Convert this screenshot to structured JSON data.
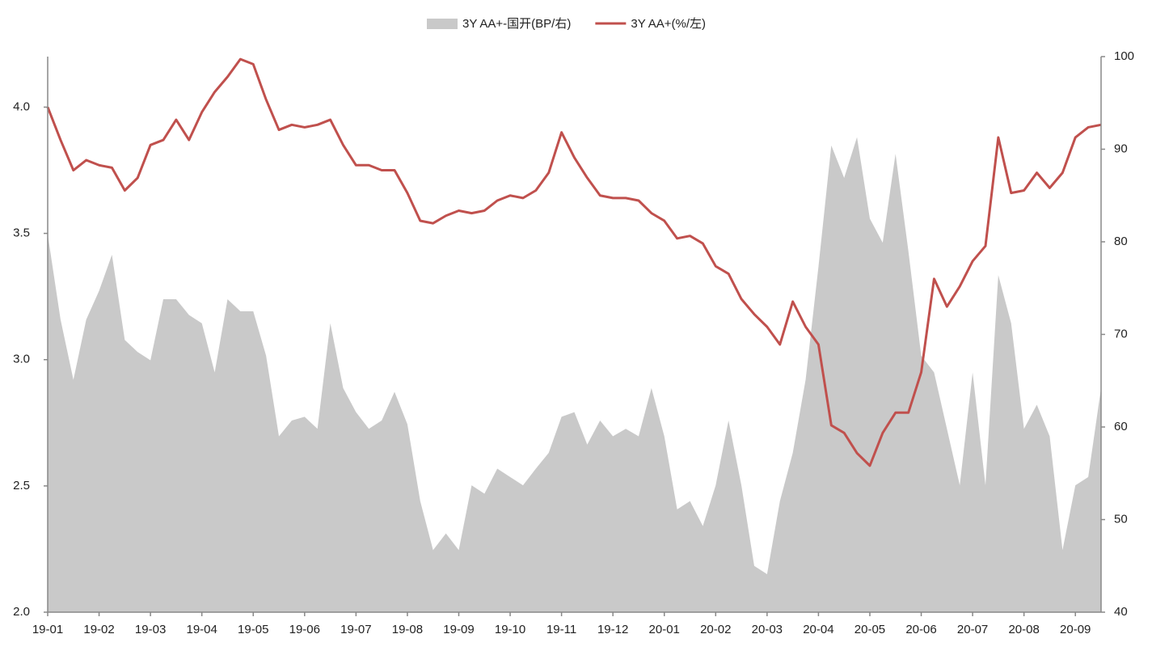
{
  "chart_data": {
    "type": "combo",
    "categories": [
      "19-01",
      null,
      null,
      null,
      "19-02",
      null,
      null,
      null,
      "19-03",
      null,
      null,
      null,
      "19-04",
      null,
      null,
      null,
      "19-05",
      null,
      null,
      null,
      "19-06",
      null,
      null,
      null,
      "19-07",
      null,
      null,
      null,
      "19-08",
      null,
      null,
      null,
      "19-09",
      null,
      null,
      null,
      "19-10",
      null,
      null,
      null,
      "19-11",
      null,
      null,
      null,
      "19-12",
      null,
      null,
      null,
      "20-01",
      null,
      null,
      null,
      "20-02",
      null,
      null,
      null,
      "20-03",
      null,
      null,
      null,
      "20-04",
      null,
      null,
      null,
      "20-05",
      null,
      null,
      null,
      "20-06",
      null,
      null,
      null,
      "20-07",
      null,
      null,
      null,
      "20-08",
      null,
      null,
      null,
      "20-09",
      null,
      null
    ],
    "series": [
      {
        "name": "3Y AA+-国开(BP/右)",
        "type": "area",
        "axis": "y2",
        "color": "#c9c9c9",
        "values": [
          80.8,
          71.6,
          65.1,
          71.6,
          74.7,
          78.6,
          69.4,
          68.1,
          67.2,
          73.8,
          73.8,
          72.1,
          71.2,
          65.9,
          73.8,
          72.5,
          72.5,
          67.7,
          59.0,
          60.7,
          61.1,
          59.8,
          71.2,
          64.2,
          61.6,
          59.8,
          60.7,
          63.8,
          60.3,
          52.0,
          46.7,
          48.5,
          46.7,
          53.7,
          52.8,
          55.5,
          54.6,
          53.7,
          55.5,
          57.2,
          61.1,
          61.6,
          58.1,
          60.7,
          59.0,
          59.8,
          59.0,
          64.2,
          59.0,
          51.1,
          52.0,
          49.3,
          53.7,
          60.7,
          53.7,
          45.0,
          44.1,
          52.0,
          57.2,
          65.1,
          77.3,
          90.4,
          86.9,
          91.3,
          82.5,
          79.9,
          89.5,
          79.0,
          67.7,
          65.9,
          59.8,
          53.7,
          65.9,
          53.7,
          76.4,
          71.2,
          59.8,
          62.4,
          59.0,
          46.7,
          53.7,
          54.6,
          64.2
        ]
      },
      {
        "name": "3Y AA+(%/左)",
        "type": "line",
        "color": "#c0504d",
        "values": [
          4.0,
          3.87,
          3.75,
          3.79,
          3.77,
          3.76,
          3.67,
          3.72,
          3.85,
          3.87,
          3.95,
          3.87,
          3.98,
          4.06,
          4.12,
          4.19,
          4.17,
          4.03,
          3.91,
          3.93,
          3.92,
          3.93,
          3.95,
          3.85,
          3.77,
          3.77,
          3.75,
          3.75,
          3.66,
          3.55,
          3.54,
          3.57,
          3.59,
          3.58,
          3.59,
          3.63,
          3.65,
          3.64,
          3.67,
          3.74,
          3.9,
          3.8,
          3.72,
          3.65,
          3.64,
          3.64,
          3.63,
          3.58,
          3.55,
          3.48,
          3.49,
          3.46,
          3.37,
          3.34,
          3.24,
          3.18,
          3.13,
          3.06,
          3.23,
          3.13,
          3.06,
          2.74,
          2.71,
          2.63,
          2.58,
          2.71,
          2.79,
          2.79,
          2.95,
          3.32,
          3.21,
          3.29,
          3.39,
          3.45,
          3.88,
          3.66,
          3.67,
          3.74,
          3.68,
          3.74,
          3.88,
          3.92,
          3.93
        ]
      }
    ],
    "ylim": [
      2.0,
      4.2
    ],
    "yticks": [
      {
        "value": 2.0,
        "label": "2.0"
      },
      {
        "value": 2.5,
        "label": "2.5"
      },
      {
        "value": 3.0,
        "label": "3.0"
      },
      {
        "value": 3.5,
        "label": "3.5"
      },
      {
        "value": 4.0,
        "label": "4.0"
      }
    ],
    "y2lim": [
      40,
      100
    ],
    "y2ticks": [
      40,
      50,
      60,
      70,
      80,
      90,
      100
    ],
    "legend": "top",
    "grid": false
  }
}
